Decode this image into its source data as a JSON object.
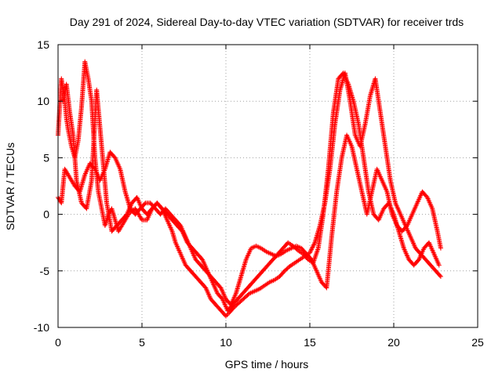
{
  "chart_data": {
    "type": "scatter",
    "title": "Day 291 of 2024, Sidereal Day-to-day VTEC variation (SDTVAR) for receiver trds",
    "xlabel": "GPS time / hours",
    "ylabel": "SDTVAR / TECUs",
    "xlim": [
      0,
      25
    ],
    "ylim": [
      -10,
      15
    ],
    "xticks": [
      0,
      5,
      10,
      15,
      20,
      25
    ],
    "yticks": [
      -10,
      -5,
      0,
      5,
      10,
      15
    ],
    "grid": true,
    "marker": "+",
    "series": [
      {
        "name": "trds",
        "color": "#ff0000",
        "tracks": [
          {
            "x": [
              0.0,
              0.1,
              0.2,
              0.3,
              0.4,
              0.5,
              0.6,
              0.8,
              1.0,
              1.2,
              1.4,
              1.6,
              1.8,
              2.0,
              2.2,
              2.4,
              2.6,
              2.8,
              3.0,
              3.2,
              3.4,
              3.6,
              3.8,
              4.0,
              4.2,
              4.4,
              4.6,
              4.8,
              5.0,
              5.3,
              5.6,
              5.9,
              6.2,
              6.5,
              6.8,
              7.0,
              7.3,
              7.6,
              7.9,
              8.2,
              8.5,
              8.8,
              9.1,
              9.4,
              9.7,
              10.0,
              10.2,
              10.5,
              10.8,
              11.1,
              11.4,
              11.7,
              12.0,
              12.3,
              12.6,
              12.9,
              13.2,
              13.5,
              13.8,
              14.1,
              14.4,
              14.7,
              15.0,
              15.3,
              15.6,
              15.9,
              16.2,
              16.5,
              16.8,
              17.1,
              17.4,
              17.7,
              18.0,
              18.3,
              18.6,
              18.9,
              19.2,
              19.5,
              19.8,
              20.1,
              20.4,
              20.7,
              21.0,
              21.3,
              21.6,
              21.9,
              22.2,
              22.5,
              22.8
            ],
            "y": [
              7.0,
              9.5,
              12.0,
              11.0,
              10.0,
              8.5,
              7.5,
              6.0,
              5.0,
              6.5,
              9.5,
              13.5,
              12.0,
              10.0,
              5.0,
              2.0,
              0.5,
              -1.0,
              0.0,
              0.5,
              -0.5,
              -1.5,
              -1.0,
              -0.5,
              0.0,
              0.3,
              0.5,
              0.0,
              -0.5,
              -0.5,
              0.5,
              1.0,
              0.5,
              -0.5,
              -1.5,
              -2.5,
              -3.5,
              -4.5,
              -5.0,
              -5.5,
              -6.0,
              -6.5,
              -7.5,
              -8.0,
              -8.5,
              -9.0,
              -8.7,
              -8.2,
              -7.8,
              -7.4,
              -7.0,
              -6.8,
              -6.6,
              -6.3,
              -6.0,
              -5.8,
              -5.5,
              -5.0,
              -4.6,
              -4.3,
              -4.0,
              -3.7,
              -3.4,
              -2.5,
              -1.0,
              1.0,
              4.0,
              8.0,
              11.0,
              12.5,
              10.0,
              7.0,
              6.0,
              8.0,
              10.5,
              12.0,
              9.0,
              6.0,
              3.0,
              1.0,
              0.0,
              -1.0,
              -2.0,
              -3.0,
              -3.5,
              -4.0,
              -4.5,
              -5.0,
              -5.5
            ]
          },
          {
            "x": [
              0.0,
              0.2,
              0.4,
              0.6,
              0.8,
              1.0,
              1.3,
              1.6,
              1.9,
              2.2,
              2.5,
              2.8,
              3.1,
              3.4,
              3.7,
              4.0,
              4.3,
              4.6,
              4.9,
              5.2,
              5.5,
              5.8,
              6.1,
              6.4,
              6.7,
              7.0,
              7.3,
              7.6,
              7.9,
              8.2,
              8.5,
              8.8,
              9.1,
              9.4,
              9.7,
              10.0,
              10.3,
              10.6,
              10.9,
              11.2,
              11.5,
              11.8,
              12.1,
              12.4,
              12.7,
              13.0,
              13.3,
              13.6,
              13.9,
              14.2,
              14.5,
              14.8,
              15.1,
              15.4,
              15.7,
              16.0,
              16.3,
              16.6,
              16.9,
              17.2,
              17.5,
              17.8,
              18.1,
              18.4,
              18.7,
              19.0,
              19.3,
              19.6,
              19.9,
              20.2,
              20.5,
              20.8,
              21.1,
              21.4,
              21.7,
              22.0,
              22.3,
              22.6,
              22.8
            ],
            "y": [
              1.5,
              1.0,
              4.0,
              3.5,
              3.0,
              2.5,
              2.0,
              3.5,
              4.5,
              4.0,
              3.0,
              4.0,
              5.5,
              5.0,
              4.0,
              2.0,
              0.5,
              0.0,
              0.5,
              1.0,
              1.0,
              0.5,
              0.0,
              0.5,
              0.0,
              -0.5,
              -1.0,
              -2.0,
              -3.0,
              -4.0,
              -4.5,
              -5.0,
              -5.5,
              -6.0,
              -6.5,
              -7.5,
              -8.0,
              -7.0,
              -5.5,
              -4.0,
              -3.0,
              -2.8,
              -3.0,
              -3.3,
              -3.5,
              -3.7,
              -3.5,
              -3.2,
              -3.0,
              -2.8,
              -3.0,
              -3.5,
              -4.0,
              -5.0,
              -6.0,
              -6.5,
              -2.0,
              2.0,
              5.0,
              7.0,
              6.0,
              4.0,
              2.0,
              0.0,
              2.0,
              4.0,
              3.0,
              2.0,
              0.0,
              -1.0,
              -1.5,
              -1.0,
              0.0,
              1.0,
              2.0,
              1.5,
              0.5,
              -1.5,
              -3.0
            ]
          },
          {
            "x": [
              0.3,
              0.5,
              0.7,
              0.9,
              1.1,
              1.4,
              1.7,
              2.0,
              2.3,
              2.6,
              2.9,
              3.2,
              3.5,
              3.8,
              4.1,
              4.4,
              4.7,
              5.0,
              5.3,
              5.6,
              5.9,
              6.2,
              6.5,
              6.8,
              7.1,
              7.4,
              7.7,
              8.0,
              8.3,
              8.6,
              8.9,
              9.2,
              9.5,
              9.8,
              10.1,
              10.4,
              10.7,
              11.0,
              11.3,
              11.6,
              11.9,
              12.2,
              12.5,
              12.8,
              13.1,
              13.4,
              13.7,
              14.0,
              14.3,
              14.6,
              14.9,
              15.2,
              15.5,
              15.8,
              16.1,
              16.4,
              16.7,
              17.0,
              17.3,
              17.6,
              17.9,
              18.2,
              18.5,
              18.8,
              19.1,
              19.4,
              19.7,
              20.0,
              20.3,
              20.6,
              20.9,
              21.2,
              21.5,
              21.8,
              22.1,
              22.4,
              22.7
            ],
            "y": [
              10.0,
              11.5,
              9.0,
              7.0,
              3.0,
              1.0,
              0.5,
              3.0,
              11.0,
              6.0,
              1.0,
              -1.5,
              -1.0,
              -0.5,
              0.0,
              1.0,
              1.5,
              0.5,
              0.0,
              0.5,
              1.0,
              0.5,
              0.0,
              -0.5,
              -1.0,
              -1.5,
              -2.5,
              -3.0,
              -3.5,
              -4.0,
              -5.0,
              -6.0,
              -7.0,
              -7.5,
              -8.5,
              -8.0,
              -7.5,
              -7.0,
              -6.5,
              -6.0,
              -5.5,
              -5.0,
              -4.5,
              -4.0,
              -3.5,
              -3.0,
              -2.5,
              -2.8,
              -3.2,
              -3.5,
              -4.0,
              -4.3,
              -3.0,
              0.0,
              4.0,
              9.0,
              12.0,
              12.5,
              11.5,
              10.0,
              8.0,
              5.0,
              2.0,
              0.0,
              -0.5,
              0.5,
              1.0,
              0.0,
              -1.5,
              -3.0,
              -4.0,
              -4.5,
              -4.0,
              -3.0,
              -2.5,
              -3.5,
              -4.5
            ]
          }
        ]
      }
    ]
  }
}
